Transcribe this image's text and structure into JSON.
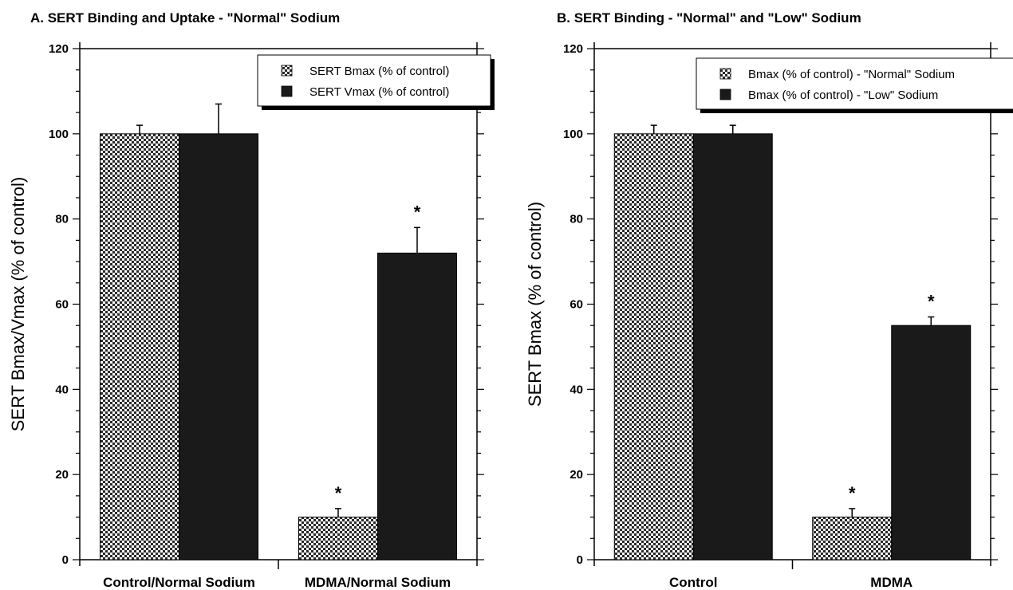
{
  "chart_data": [
    {
      "type": "bar",
      "title": "A. SERT Binding and Uptake - \"Normal\" Sodium",
      "ylabel": "SERT Bmax/Vmax (% of control)",
      "xlabel": "",
      "ylim": [
        0,
        120
      ],
      "yticks": [
        "0",
        "20",
        "40",
        "60",
        "80",
        "100",
        "120"
      ],
      "categories": [
        "Control/Normal Sodium",
        "MDMA/Normal Sodium"
      ],
      "legend_position": "top-right",
      "series": [
        {
          "name": "SERT Bmax (% of control)",
          "pattern": "checker",
          "values": [
            100,
            10
          ],
          "errors": [
            2,
            2
          ],
          "significance": [
            "",
            "*"
          ]
        },
        {
          "name": "SERT Vmax (% of control)",
          "pattern": "solid",
          "values": [
            100,
            72
          ],
          "errors": [
            7,
            6
          ],
          "significance": [
            "",
            "*"
          ]
        }
      ]
    },
    {
      "type": "bar",
      "title": "B. SERT Binding - \"Normal\" and \"Low\" Sodium",
      "ylabel": "SERT Bmax (% of control)",
      "xlabel": "",
      "ylim": [
        0,
        120
      ],
      "yticks": [
        "0",
        "20",
        "40",
        "60",
        "80",
        "100",
        "120"
      ],
      "categories": [
        "Control",
        "MDMA"
      ],
      "legend_position": "top-right",
      "series": [
        {
          "name": "Bmax (% of control) - \"Normal\" Sodium",
          "pattern": "checker",
          "values": [
            100,
            10
          ],
          "errors": [
            2,
            2
          ],
          "significance": [
            "",
            "*"
          ]
        },
        {
          "name": "Bmax (% of control) - \"Low\" Sodium",
          "pattern": "solid",
          "values": [
            100,
            55
          ],
          "errors": [
            2,
            2
          ],
          "significance": [
            "",
            "*"
          ]
        }
      ]
    }
  ],
  "colors": {
    "bar_solid": "#1a1a1a",
    "checker_dark": "#2a2a2a",
    "checker_light": "#ffffff",
    "axis": "#000000"
  }
}
